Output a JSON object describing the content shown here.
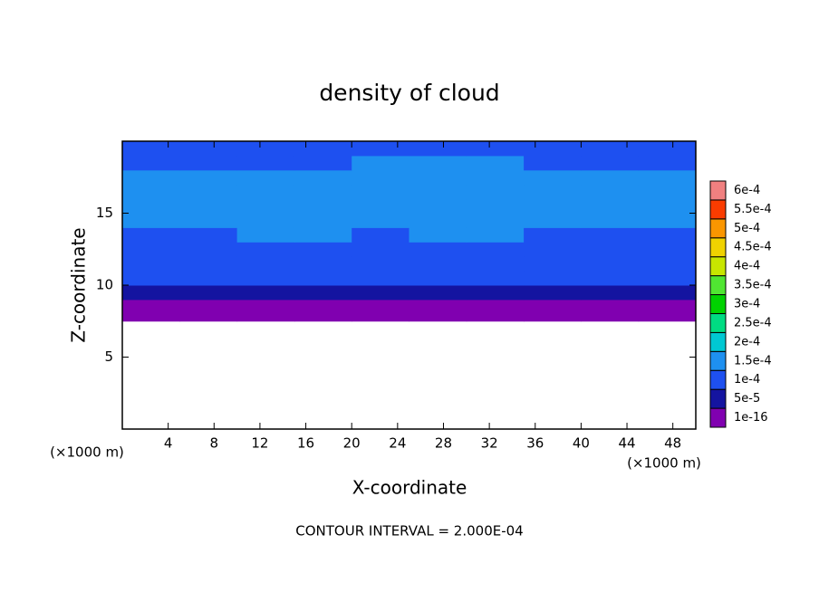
{
  "chart_data": {
    "type": "contour",
    "title": "density of cloud",
    "x_label": "X-coordinate",
    "y_label": "Z-coordinate",
    "x_unit": "(×1000 m)",
    "y_unit": "(×1000 m)",
    "footer": "CONTOUR INTERVAL = 2.000E-04",
    "xlim": [
      0,
      50
    ],
    "ylim": [
      0,
      20
    ],
    "xticks": [
      4,
      8,
      12,
      16,
      20,
      24,
      28,
      32,
      36,
      40,
      44,
      48
    ],
    "yticks": [
      5,
      10,
      15
    ],
    "x": [
      0,
      5,
      10,
      15,
      20,
      25,
      30,
      35,
      40,
      45,
      50
    ],
    "z": [
      7.5,
      8,
      9,
      10,
      11,
      12,
      13,
      14,
      15,
      16,
      17,
      18,
      19,
      20
    ],
    "values": [
      [
        3e-05,
        3e-05,
        3e-05,
        3e-05,
        3e-05,
        3e-05,
        3e-05,
        3e-05,
        3e-05,
        3e-05
      ],
      [
        4e-05,
        4e-05,
        4e-05,
        4e-05,
        4e-05,
        4e-05,
        4e-05,
        4e-05,
        4e-05,
        4e-05
      ],
      [
        8e-05,
        8e-05,
        7e-05,
        8e-05,
        7e-05,
        7e-05,
        7e-05,
        8e-05,
        8e-05,
        8e-05
      ],
      [
        0.00011,
        0.00011,
        0.00011,
        0.00011,
        0.00011,
        0.00011,
        0.00011,
        0.00011,
        0.00011,
        0.00011
      ],
      [
        0.00012,
        0.00012,
        0.00012,
        0.00012,
        0.00012,
        0.00012,
        0.00012,
        0.00012,
        0.00012,
        0.00012
      ],
      [
        0.00013,
        0.00013,
        0.00013,
        0.00013,
        0.00013,
        0.00013,
        0.00013,
        0.00013,
        0.00013,
        0.00013
      ],
      [
        0.00014,
        0.00014,
        0.00015,
        0.00015,
        0.00014,
        0.00015,
        0.00015,
        0.00014,
        0.00014,
        0.00014
      ],
      [
        0.00016,
        0.00016,
        0.00016,
        0.00016,
        0.00016,
        0.00016,
        0.00016,
        0.00016,
        0.00016,
        0.00016
      ],
      [
        0.00016,
        0.00016,
        0.00016,
        0.00016,
        0.00016,
        0.00016,
        0.00016,
        0.00016,
        0.00016,
        0.00016
      ],
      [
        0.00016,
        0.00016,
        0.00016,
        0.00016,
        0.00016,
        0.00016,
        0.00016,
        0.00016,
        0.00016,
        0.00016
      ],
      [
        0.00015,
        0.00016,
        0.00016,
        0.00016,
        0.00016,
        0.00016,
        0.00016,
        0.00016,
        0.00016,
        0.00016
      ],
      [
        0.00014,
        0.00014,
        0.00014,
        0.00014,
        0.00015,
        0.00015,
        0.00015,
        0.00014,
        0.00014,
        0.00014
      ],
      [
        0.00013,
        0.00013,
        0.00013,
        0.00013,
        0.00013,
        0.00013,
        0.00013,
        0.00013,
        0.00013,
        0.00013
      ]
    ],
    "colorbar": {
      "levels": [
        {
          "value": 1e-16,
          "label": "1e-16"
        },
        {
          "value": 5e-05,
          "label": "5e-5"
        },
        {
          "value": 0.0001,
          "label": "1e-4"
        },
        {
          "value": 0.00015,
          "label": "1.5e-4"
        },
        {
          "value": 0.0002,
          "label": "2e-4"
        },
        {
          "value": 0.00025,
          "label": "2.5e-4"
        },
        {
          "value": 0.0003,
          "label": "3e-4"
        },
        {
          "value": 0.00035,
          "label": "3.5e-4"
        },
        {
          "value": 0.0004,
          "label": "4e-4"
        },
        {
          "value": 0.00045,
          "label": "4.5e-4"
        },
        {
          "value": 0.0005,
          "label": "5e-4"
        },
        {
          "value": 0.00055,
          "label": "5.5e-4"
        },
        {
          "value": 0.0006,
          "label": "6e-4"
        }
      ],
      "colors": [
        "#8000b0",
        "#1414a0",
        "#1e50f0",
        "#1e90f0",
        "#00c8d2",
        "#00dc82",
        "#00d200",
        "#50e632",
        "#c8e600",
        "#f0d200",
        "#fa9600",
        "#fa3c00",
        "#f08080"
      ]
    }
  }
}
